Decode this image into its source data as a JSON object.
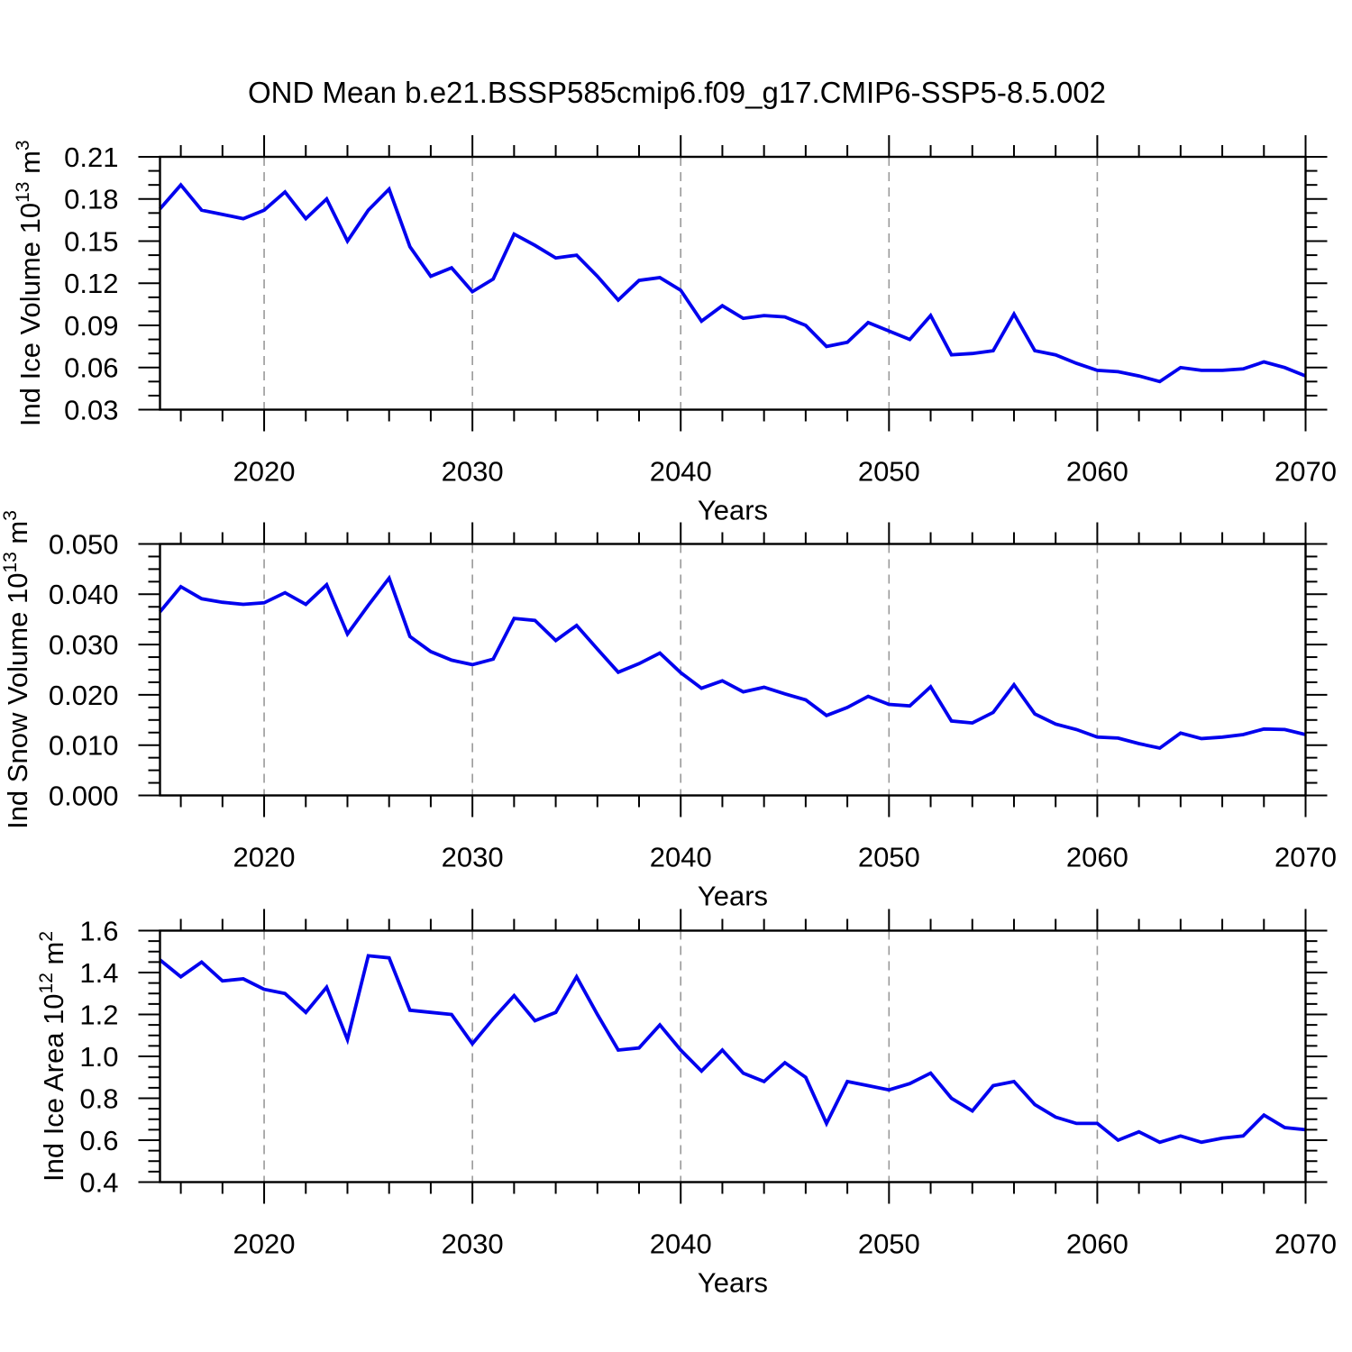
{
  "title": "OND Mean b.e21.BSSP585cmip6.f09_g17.CMIP6-SSP5-8.5.002",
  "colors": {
    "line": "#0202EE",
    "axis": "#000000",
    "grid": "#999999",
    "background": "#FFFFFF"
  },
  "x_axis": {
    "label": "Years",
    "range": [
      2015,
      2070
    ],
    "major_ticks": [
      2020,
      2030,
      2040,
      2050,
      2060,
      2070
    ],
    "major_tick_labels": [
      "2020",
      "2030",
      "2040",
      "2050",
      "2060",
      "2070"
    ],
    "minor_step": 2,
    "grid_years": [
      2020,
      2030,
      2040,
      2050,
      2060
    ],
    "grid_style": "dashed"
  },
  "years": [
    2015,
    2016,
    2017,
    2018,
    2019,
    2020,
    2021,
    2022,
    2023,
    2024,
    2025,
    2026,
    2027,
    2028,
    2029,
    2030,
    2031,
    2032,
    2033,
    2034,
    2035,
    2036,
    2037,
    2038,
    2039,
    2040,
    2041,
    2042,
    2043,
    2044,
    2045,
    2046,
    2047,
    2048,
    2049,
    2050,
    2051,
    2052,
    2053,
    2054,
    2055,
    2056,
    2057,
    2058,
    2059,
    2060,
    2061,
    2062,
    2063,
    2064,
    2065,
    2066,
    2067,
    2068,
    2069,
    2070
  ],
  "chart_data": [
    {
      "type": "line",
      "name": "ice-volume",
      "ylabel_base1": "Ind Ice Volume 10",
      "ylabel_sup1": "13",
      "ylabel_base2": " m",
      "ylabel_sup2": "3",
      "xlabel": "Years",
      "ylim": [
        0.03,
        0.21
      ],
      "ytick_values": [
        0.21,
        0.18,
        0.15,
        0.12,
        0.09,
        0.06,
        0.03
      ],
      "ytick_labels": [
        "0.21",
        "0.18",
        "0.15",
        "0.12",
        "0.09",
        "0.06",
        "0.03"
      ],
      "y_minor_step": 0.01,
      "values": [
        0.173,
        0.19,
        0.172,
        0.169,
        0.166,
        0.172,
        0.185,
        0.166,
        0.18,
        0.15,
        0.172,
        0.187,
        0.146,
        0.125,
        0.131,
        0.114,
        0.123,
        0.155,
        0.147,
        0.138,
        0.14,
        0.125,
        0.108,
        0.122,
        0.124,
        0.115,
        0.093,
        0.104,
        0.095,
        0.097,
        0.096,
        0.09,
        0.075,
        0.078,
        0.092,
        0.086,
        0.08,
        0.097,
        0.069,
        0.07,
        0.072,
        0.098,
        0.072,
        0.069,
        0.063,
        0.058,
        0.057,
        0.054,
        0.05,
        0.06,
        0.058,
        0.058,
        0.059,
        0.064,
        0.06,
        0.054
      ]
    },
    {
      "type": "line",
      "name": "snow-volume",
      "ylabel_base1": "Ind Snow Volume 10",
      "ylabel_sup1": "13",
      "ylabel_base2": " m",
      "ylabel_sup2": "3",
      "xlabel": "Years",
      "ylim": [
        0.0,
        0.05
      ],
      "ytick_values": [
        0.05,
        0.04,
        0.03,
        0.02,
        0.01,
        0.0
      ],
      "ytick_labels": [
        "0.050",
        "0.040",
        "0.030",
        "0.020",
        "0.010",
        "0.000"
      ],
      "y_minor_step": 0.0025,
      "values": [
        0.0365,
        0.0415,
        0.0391,
        0.0384,
        0.038,
        0.0383,
        0.0403,
        0.038,
        0.0419,
        0.0321,
        0.0378,
        0.0432,
        0.0316,
        0.0286,
        0.0269,
        0.026,
        0.0271,
        0.0352,
        0.0348,
        0.0308,
        0.0338,
        0.0291,
        0.0245,
        0.0262,
        0.0283,
        0.0244,
        0.0213,
        0.0228,
        0.0206,
        0.0215,
        0.0202,
        0.019,
        0.0159,
        0.0175,
        0.0197,
        0.0181,
        0.0178,
        0.0216,
        0.0148,
        0.0144,
        0.0165,
        0.022,
        0.0162,
        0.0142,
        0.0131,
        0.0116,
        0.0114,
        0.0103,
        0.0094,
        0.0124,
        0.0113,
        0.0116,
        0.0121,
        0.0132,
        0.0131,
        0.0121
      ]
    },
    {
      "type": "line",
      "name": "ice-area",
      "ylabel_base1": "Ind Ice Area 10",
      "ylabel_sup1": "12",
      "ylabel_base2": " m",
      "ylabel_sup2": "2",
      "xlabel": "Years",
      "ylim": [
        0.4,
        1.6
      ],
      "ytick_values": [
        1.6,
        1.4,
        1.2,
        1.0,
        0.8,
        0.6,
        0.4
      ],
      "ytick_labels": [
        "1.6",
        "1.4",
        "1.2",
        "1.0",
        "0.8",
        "0.6",
        "0.4"
      ],
      "y_minor_step": 0.05,
      "values": [
        1.46,
        1.38,
        1.45,
        1.36,
        1.37,
        1.32,
        1.3,
        1.21,
        1.33,
        1.08,
        1.48,
        1.47,
        1.22,
        1.21,
        1.2,
        1.06,
        1.18,
        1.29,
        1.17,
        1.21,
        1.38,
        1.2,
        1.03,
        1.04,
        1.15,
        1.03,
        0.93,
        1.03,
        0.92,
        0.88,
        0.97,
        0.9,
        0.68,
        0.88,
        0.86,
        0.84,
        0.87,
        0.92,
        0.8,
        0.74,
        0.86,
        0.88,
        0.77,
        0.71,
        0.68,
        0.68,
        0.6,
        0.64,
        0.59,
        0.62,
        0.59,
        0.61,
        0.62,
        0.72,
        0.66,
        0.65
      ]
    }
  ]
}
